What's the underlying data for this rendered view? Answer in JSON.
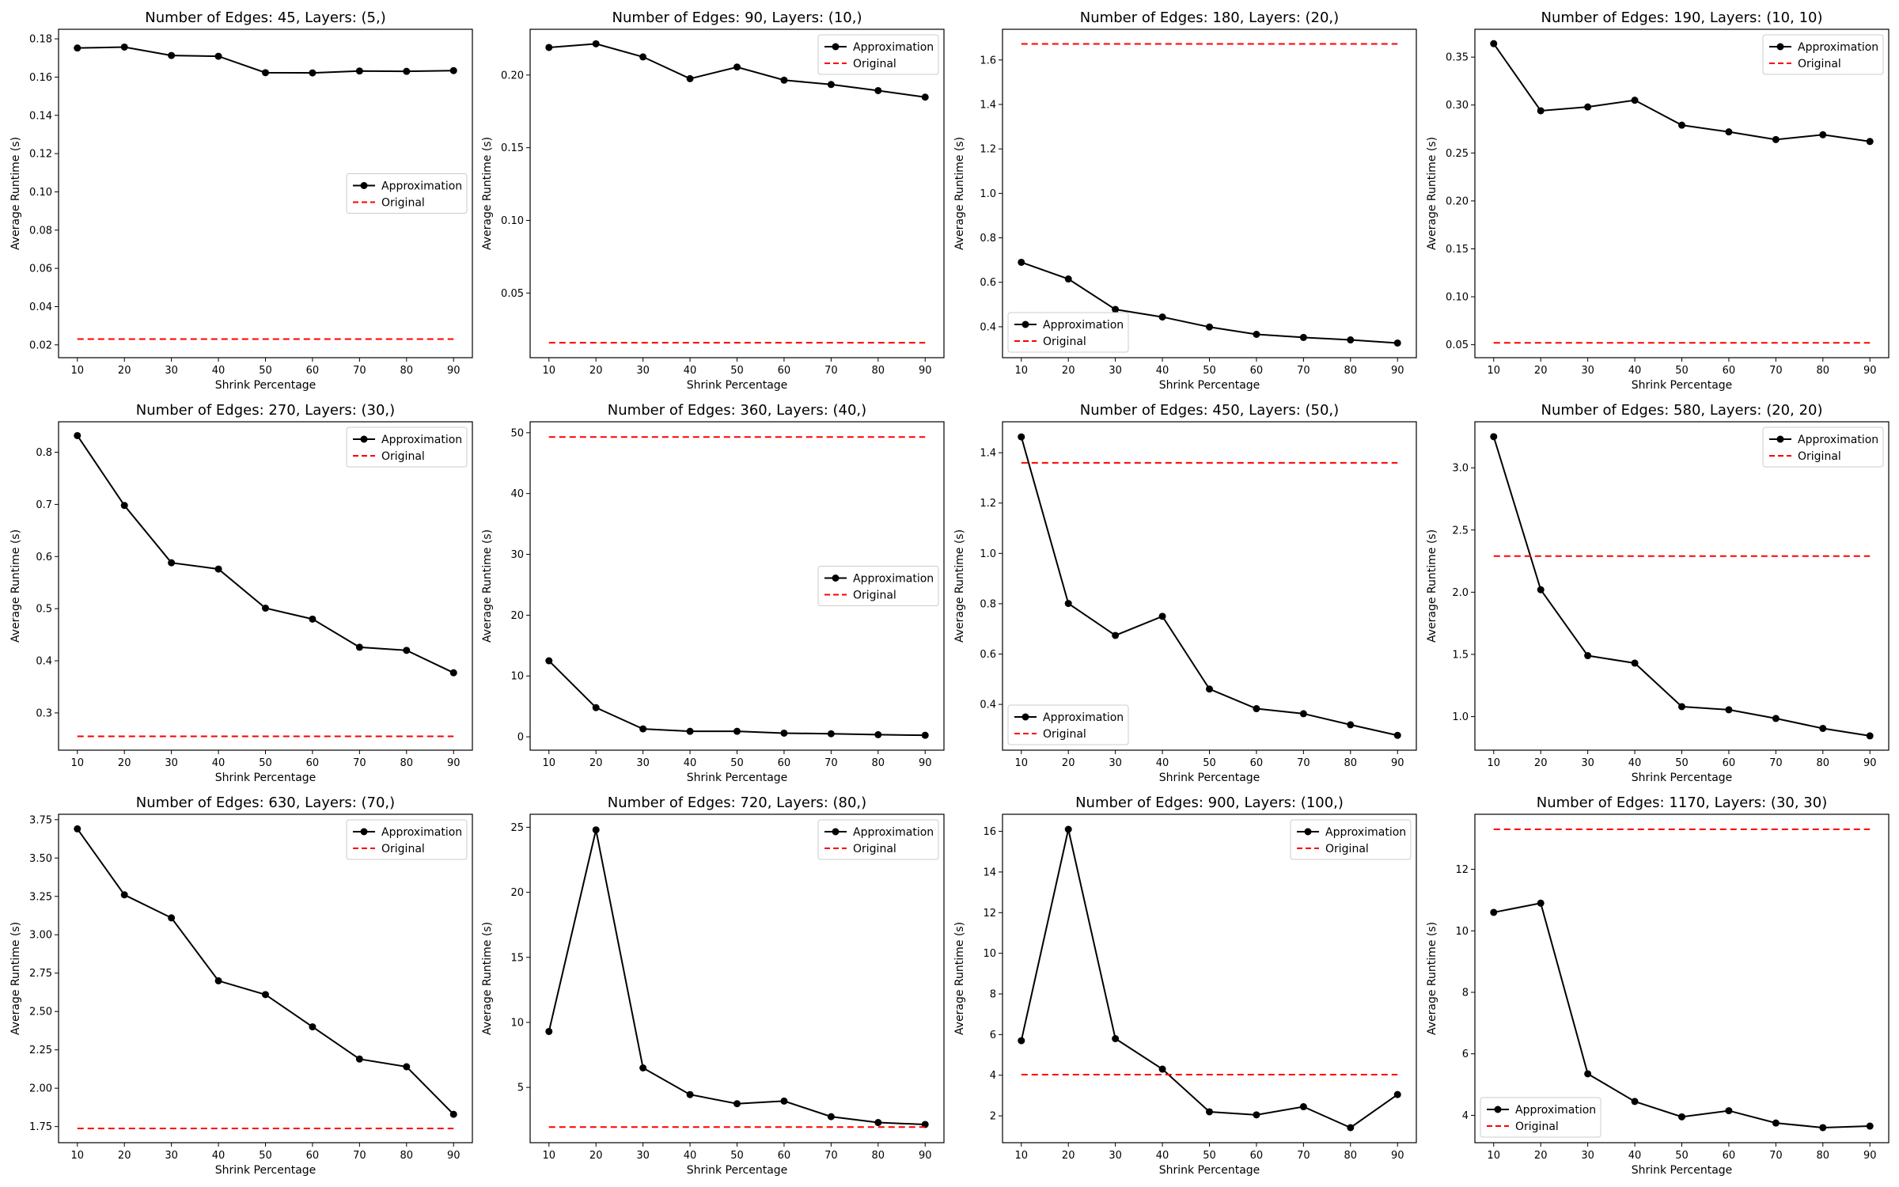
{
  "chart_data": [
    {
      "type": "line",
      "title": "Number of Edges: 45, Layers: (5,)",
      "xlabel": "Shrink Percentage",
      "ylabel": "Average Runtime (s)",
      "x": [
        10,
        20,
        30,
        40,
        50,
        60,
        70,
        80,
        90
      ],
      "xticks": [
        10,
        20,
        30,
        40,
        50,
        60,
        70,
        80,
        90
      ],
      "ylim": [
        0.0133,
        0.185
      ],
      "yticks": [
        0.02,
        0.04,
        0.06,
        0.08,
        0.1,
        0.12,
        0.14,
        0.16,
        0.18
      ],
      "ytick_labels": [
        "0.02",
        "0.04",
        "0.06",
        "0.08",
        "0.10",
        "0.12",
        "0.14",
        "0.16",
        "0.18"
      ],
      "legend_position": "center-right",
      "series": [
        {
          "name": "Approximation",
          "style": "black-solid-markers",
          "values": [
            0.1752,
            0.1757,
            0.1713,
            0.1709,
            0.1623,
            0.1622,
            0.1632,
            0.163,
            0.1634
          ]
        },
        {
          "name": "Original",
          "style": "red-dashed",
          "values": [
            0.023,
            0.023,
            0.023,
            0.023,
            0.023,
            0.023,
            0.023,
            0.023,
            0.023
          ]
        }
      ]
    },
    {
      "type": "line",
      "title": "Number of Edges: 90, Layers: (10,)",
      "xlabel": "Shrink Percentage",
      "ylabel": "Average Runtime (s)",
      "x": [
        10,
        20,
        30,
        40,
        50,
        60,
        70,
        80,
        90
      ],
      "xticks": [
        10,
        20,
        30,
        40,
        50,
        60,
        70,
        80,
        90
      ],
      "ylim": [
        0.0055,
        0.2315
      ],
      "yticks": [
        0.05,
        0.1,
        0.15,
        0.2
      ],
      "ytick_labels": [
        "0.05",
        "0.10",
        "0.15",
        "0.20"
      ],
      "legend_position": "top-right",
      "series": [
        {
          "name": "Approximation",
          "style": "black-solid-markers",
          "values": [
            0.219,
            0.2215,
            0.2125,
            0.1975,
            0.2055,
            0.1965,
            0.1935,
            0.1893,
            0.1848
          ]
        },
        {
          "name": "Original",
          "style": "red-dashed",
          "values": [
            0.0158,
            0.0158,
            0.0158,
            0.0158,
            0.0158,
            0.0158,
            0.0158,
            0.0158,
            0.0158
          ]
        }
      ]
    },
    {
      "type": "line",
      "title": "Number of Edges: 180, Layers: (20,)",
      "xlabel": "Shrink Percentage",
      "ylabel": "Average Runtime (s)",
      "x": [
        10,
        20,
        30,
        40,
        50,
        60,
        70,
        80,
        90
      ],
      "xticks": [
        10,
        20,
        30,
        40,
        50,
        60,
        70,
        80,
        90
      ],
      "ylim": [
        0.261,
        1.738
      ],
      "yticks": [
        0.4,
        0.6,
        0.8,
        1.0,
        1.2,
        1.4,
        1.6
      ],
      "ytick_labels": [
        "0.4",
        "0.6",
        "0.8",
        "1.0",
        "1.2",
        "1.4",
        "1.6"
      ],
      "legend_position": "bottom-left",
      "series": [
        {
          "name": "Approximation",
          "style": "black-solid-markers",
          "values": [
            0.69,
            0.615,
            0.478,
            0.444,
            0.399,
            0.366,
            0.352,
            0.341,
            0.327
          ]
        },
        {
          "name": "Original",
          "style": "red-dashed",
          "values": [
            1.672,
            1.672,
            1.672,
            1.672,
            1.672,
            1.672,
            1.672,
            1.672,
            1.672
          ]
        }
      ]
    },
    {
      "type": "line",
      "title": "Number of Edges: 190, Layers: (10, 10)",
      "xlabel": "Shrink Percentage",
      "ylabel": "Average Runtime (s)",
      "x": [
        10,
        20,
        30,
        40,
        50,
        60,
        70,
        80,
        90
      ],
      "xticks": [
        10,
        20,
        30,
        40,
        50,
        60,
        70,
        80,
        90
      ],
      "ylim": [
        0.0365,
        0.379
      ],
      "yticks": [
        0.05,
        0.1,
        0.15,
        0.2,
        0.25,
        0.3,
        0.35
      ],
      "ytick_labels": [
        "0.05",
        "0.10",
        "0.15",
        "0.20",
        "0.25",
        "0.30",
        "0.35"
      ],
      "legend_position": "top-right",
      "series": [
        {
          "name": "Approximation",
          "style": "black-solid-markers",
          "values": [
            0.364,
            0.294,
            0.298,
            0.305,
            0.279,
            0.272,
            0.264,
            0.269,
            0.262
          ]
        },
        {
          "name": "Original",
          "style": "red-dashed",
          "values": [
            0.052,
            0.052,
            0.052,
            0.052,
            0.052,
            0.052,
            0.052,
            0.052,
            0.052
          ]
        }
      ]
    },
    {
      "type": "line",
      "title": "Number of Edges: 270, Layers: (30,)",
      "xlabel": "Shrink Percentage",
      "ylabel": "Average Runtime (s)",
      "x": [
        10,
        20,
        30,
        40,
        50,
        60,
        70,
        80,
        90
      ],
      "xticks": [
        10,
        20,
        30,
        40,
        50,
        60,
        70,
        80,
        90
      ],
      "ylim": [
        0.2285,
        0.8585
      ],
      "yticks": [
        0.3,
        0.4,
        0.5,
        0.6,
        0.7,
        0.8
      ],
      "ytick_labels": [
        "0.3",
        "0.4",
        "0.5",
        "0.6",
        "0.7",
        "0.8"
      ],
      "legend_position": "top-right",
      "series": [
        {
          "name": "Approximation",
          "style": "black-solid-markers",
          "values": [
            0.832,
            0.698,
            0.588,
            0.576,
            0.501,
            0.48,
            0.426,
            0.42,
            0.377
          ]
        },
        {
          "name": "Original",
          "style": "red-dashed",
          "values": [
            0.255,
            0.255,
            0.255,
            0.255,
            0.255,
            0.255,
            0.255,
            0.255,
            0.255
          ]
        }
      ]
    },
    {
      "type": "line",
      "title": "Number of Edges: 360, Layers: (40,)",
      "xlabel": "Shrink Percentage",
      "ylabel": "Average Runtime (s)",
      "x": [
        10,
        20,
        30,
        40,
        50,
        60,
        70,
        80,
        90
      ],
      "xticks": [
        10,
        20,
        30,
        40,
        50,
        60,
        70,
        80,
        90
      ],
      "ylim": [
        -2.2,
        51.8
      ],
      "yticks": [
        0,
        10,
        20,
        30,
        40,
        50
      ],
      "ytick_labels": [
        "0",
        "10",
        "20",
        "30",
        "40",
        "50"
      ],
      "legend_position": "center-right",
      "series": [
        {
          "name": "Approximation",
          "style": "black-solid-markers",
          "values": [
            12.5,
            4.8,
            1.3,
            0.9,
            0.9,
            0.6,
            0.5,
            0.35,
            0.25
          ]
        },
        {
          "name": "Original",
          "style": "red-dashed",
          "values": [
            49.3,
            49.3,
            49.3,
            49.3,
            49.3,
            49.3,
            49.3,
            49.3,
            49.3
          ]
        }
      ]
    },
    {
      "type": "line",
      "title": "Number of Edges: 450, Layers: (50,)",
      "xlabel": "Shrink Percentage",
      "ylabel": "Average Runtime (s)",
      "x": [
        10,
        20,
        30,
        40,
        50,
        60,
        70,
        80,
        90
      ],
      "xticks": [
        10,
        20,
        30,
        40,
        50,
        60,
        70,
        80,
        90
      ],
      "ylim": [
        0.218,
        1.523
      ],
      "yticks": [
        0.4,
        0.6,
        0.8,
        1.0,
        1.2,
        1.4
      ],
      "ytick_labels": [
        "0.4",
        "0.6",
        "0.8",
        "1.0",
        "1.2",
        "1.4"
      ],
      "legend_position": "bottom-left",
      "series": [
        {
          "name": "Approximation",
          "style": "black-solid-markers",
          "values": [
            1.463,
            0.801,
            0.674,
            0.75,
            0.461,
            0.383,
            0.363,
            0.319,
            0.277
          ]
        },
        {
          "name": "Original",
          "style": "red-dashed",
          "values": [
            1.36,
            1.36,
            1.36,
            1.36,
            1.36,
            1.36,
            1.36,
            1.36,
            1.36
          ]
        }
      ]
    },
    {
      "type": "line",
      "title": "Number of Edges: 580, Layers: (20, 20)",
      "xlabel": "Shrink Percentage",
      "ylabel": "Average Runtime (s)",
      "x": [
        10,
        20,
        30,
        40,
        50,
        60,
        70,
        80,
        90
      ],
      "xticks": [
        10,
        20,
        30,
        40,
        50,
        60,
        70,
        80,
        90
      ],
      "ylim": [
        0.73,
        3.37
      ],
      "yticks": [
        1.0,
        1.5,
        2.0,
        2.5,
        3.0
      ],
      "ytick_labels": [
        "1.0",
        "1.5",
        "2.0",
        "2.5",
        "3.0"
      ],
      "legend_position": "top-right",
      "series": [
        {
          "name": "Approximation",
          "style": "black-solid-markers",
          "values": [
            3.25,
            2.02,
            1.49,
            1.43,
            1.08,
            1.055,
            0.985,
            0.905,
            0.845
          ]
        },
        {
          "name": "Original",
          "style": "red-dashed",
          "values": [
            2.29,
            2.29,
            2.29,
            2.29,
            2.29,
            2.29,
            2.29,
            2.29,
            2.29
          ]
        }
      ]
    },
    {
      "type": "line",
      "title": "Number of Edges: 630, Layers: (70,)",
      "xlabel": "Shrink Percentage",
      "ylabel": "Average Runtime (s)",
      "x": [
        10,
        20,
        30,
        40,
        50,
        60,
        70,
        80,
        90
      ],
      "xticks": [
        10,
        20,
        30,
        40,
        50,
        60,
        70,
        80,
        90
      ],
      "ylim": [
        1.645,
        3.785
      ],
      "yticks": [
        1.75,
        2.0,
        2.25,
        2.5,
        2.75,
        3.0,
        3.25,
        3.5,
        3.75
      ],
      "ytick_labels": [
        "1.75",
        "2.00",
        "2.25",
        "2.50",
        "2.75",
        "3.00",
        "3.25",
        "3.50",
        "3.75"
      ],
      "legend_position": "top-right",
      "series": [
        {
          "name": "Approximation",
          "style": "black-solid-markers",
          "values": [
            3.69,
            3.26,
            3.11,
            2.7,
            2.61,
            2.4,
            2.19,
            2.14,
            1.83
          ]
        },
        {
          "name": "Original",
          "style": "red-dashed",
          "values": [
            1.738,
            1.738,
            1.738,
            1.738,
            1.738,
            1.738,
            1.738,
            1.738,
            1.738
          ]
        }
      ]
    },
    {
      "type": "line",
      "title": "Number of Edges: 720, Layers: (80,)",
      "xlabel": "Shrink Percentage",
      "ylabel": "Average Runtime (s)",
      "x": [
        10,
        20,
        30,
        40,
        50,
        60,
        70,
        80,
        90
      ],
      "xticks": [
        10,
        20,
        30,
        40,
        50,
        60,
        70,
        80,
        90
      ],
      "ylim": [
        0.75,
        26.0
      ],
      "yticks": [
        5,
        10,
        15,
        20,
        25
      ],
      "ytick_labels": [
        "5",
        "10",
        "15",
        "20",
        "25"
      ],
      "legend_position": "top-right",
      "series": [
        {
          "name": "Approximation",
          "style": "black-solid-markers",
          "values": [
            9.3,
            24.8,
            6.5,
            4.45,
            3.75,
            3.95,
            2.75,
            2.3,
            2.15
          ]
        },
        {
          "name": "Original",
          "style": "red-dashed",
          "values": [
            1.95,
            1.95,
            1.95,
            1.95,
            1.95,
            1.95,
            1.95,
            1.95,
            1.95
          ]
        }
      ]
    },
    {
      "type": "line",
      "title": "Number of Edges: 900, Layers: (100,)",
      "xlabel": "Shrink Percentage",
      "ylabel": "Average Runtime (s)",
      "x": [
        10,
        20,
        30,
        40,
        50,
        60,
        70,
        80,
        90
      ],
      "xticks": [
        10,
        20,
        30,
        40,
        50,
        60,
        70,
        80,
        90
      ],
      "ylim": [
        0.68,
        16.84
      ],
      "yticks": [
        2,
        4,
        6,
        8,
        10,
        12,
        14,
        16
      ],
      "ytick_labels": [
        "2",
        "4",
        "6",
        "8",
        "10",
        "12",
        "14",
        "16"
      ],
      "legend_position": "top-right",
      "series": [
        {
          "name": "Approximation",
          "style": "black-solid-markers",
          "values": [
            5.7,
            16.1,
            5.8,
            4.3,
            2.2,
            2.05,
            2.45,
            1.42,
            3.05
          ]
        },
        {
          "name": "Original",
          "style": "red-dashed",
          "values": [
            4.03,
            4.03,
            4.03,
            4.03,
            4.03,
            4.03,
            4.03,
            4.03,
            4.03
          ]
        }
      ]
    },
    {
      "type": "line",
      "title": "Number of Edges: 1170, Layers: (30, 30)",
      "xlabel": "Shrink Percentage",
      "ylabel": "Average Runtime (s)",
      "x": [
        10,
        20,
        30,
        40,
        50,
        60,
        70,
        80,
        90
      ],
      "xticks": [
        10,
        20,
        30,
        40,
        50,
        60,
        70,
        80,
        90
      ],
      "ylim": [
        3.11,
        13.79
      ],
      "yticks": [
        4,
        6,
        8,
        10,
        12
      ],
      "ytick_labels": [
        "4",
        "6",
        "8",
        "10",
        "12"
      ],
      "legend_position": "bottom-left",
      "series": [
        {
          "name": "Approximation",
          "style": "black-solid-markers",
          "values": [
            10.6,
            10.9,
            5.35,
            4.45,
            3.95,
            4.15,
            3.75,
            3.6,
            3.65
          ]
        },
        {
          "name": "Original",
          "style": "red-dashed",
          "values": [
            13.3,
            13.3,
            13.3,
            13.3,
            13.3,
            13.3,
            13.3,
            13.3,
            13.3
          ]
        }
      ]
    }
  ],
  "colors": {
    "approximation": "#000000",
    "original": "#ff0000",
    "axes": "#000000",
    "legend_border": "#cccccc"
  }
}
